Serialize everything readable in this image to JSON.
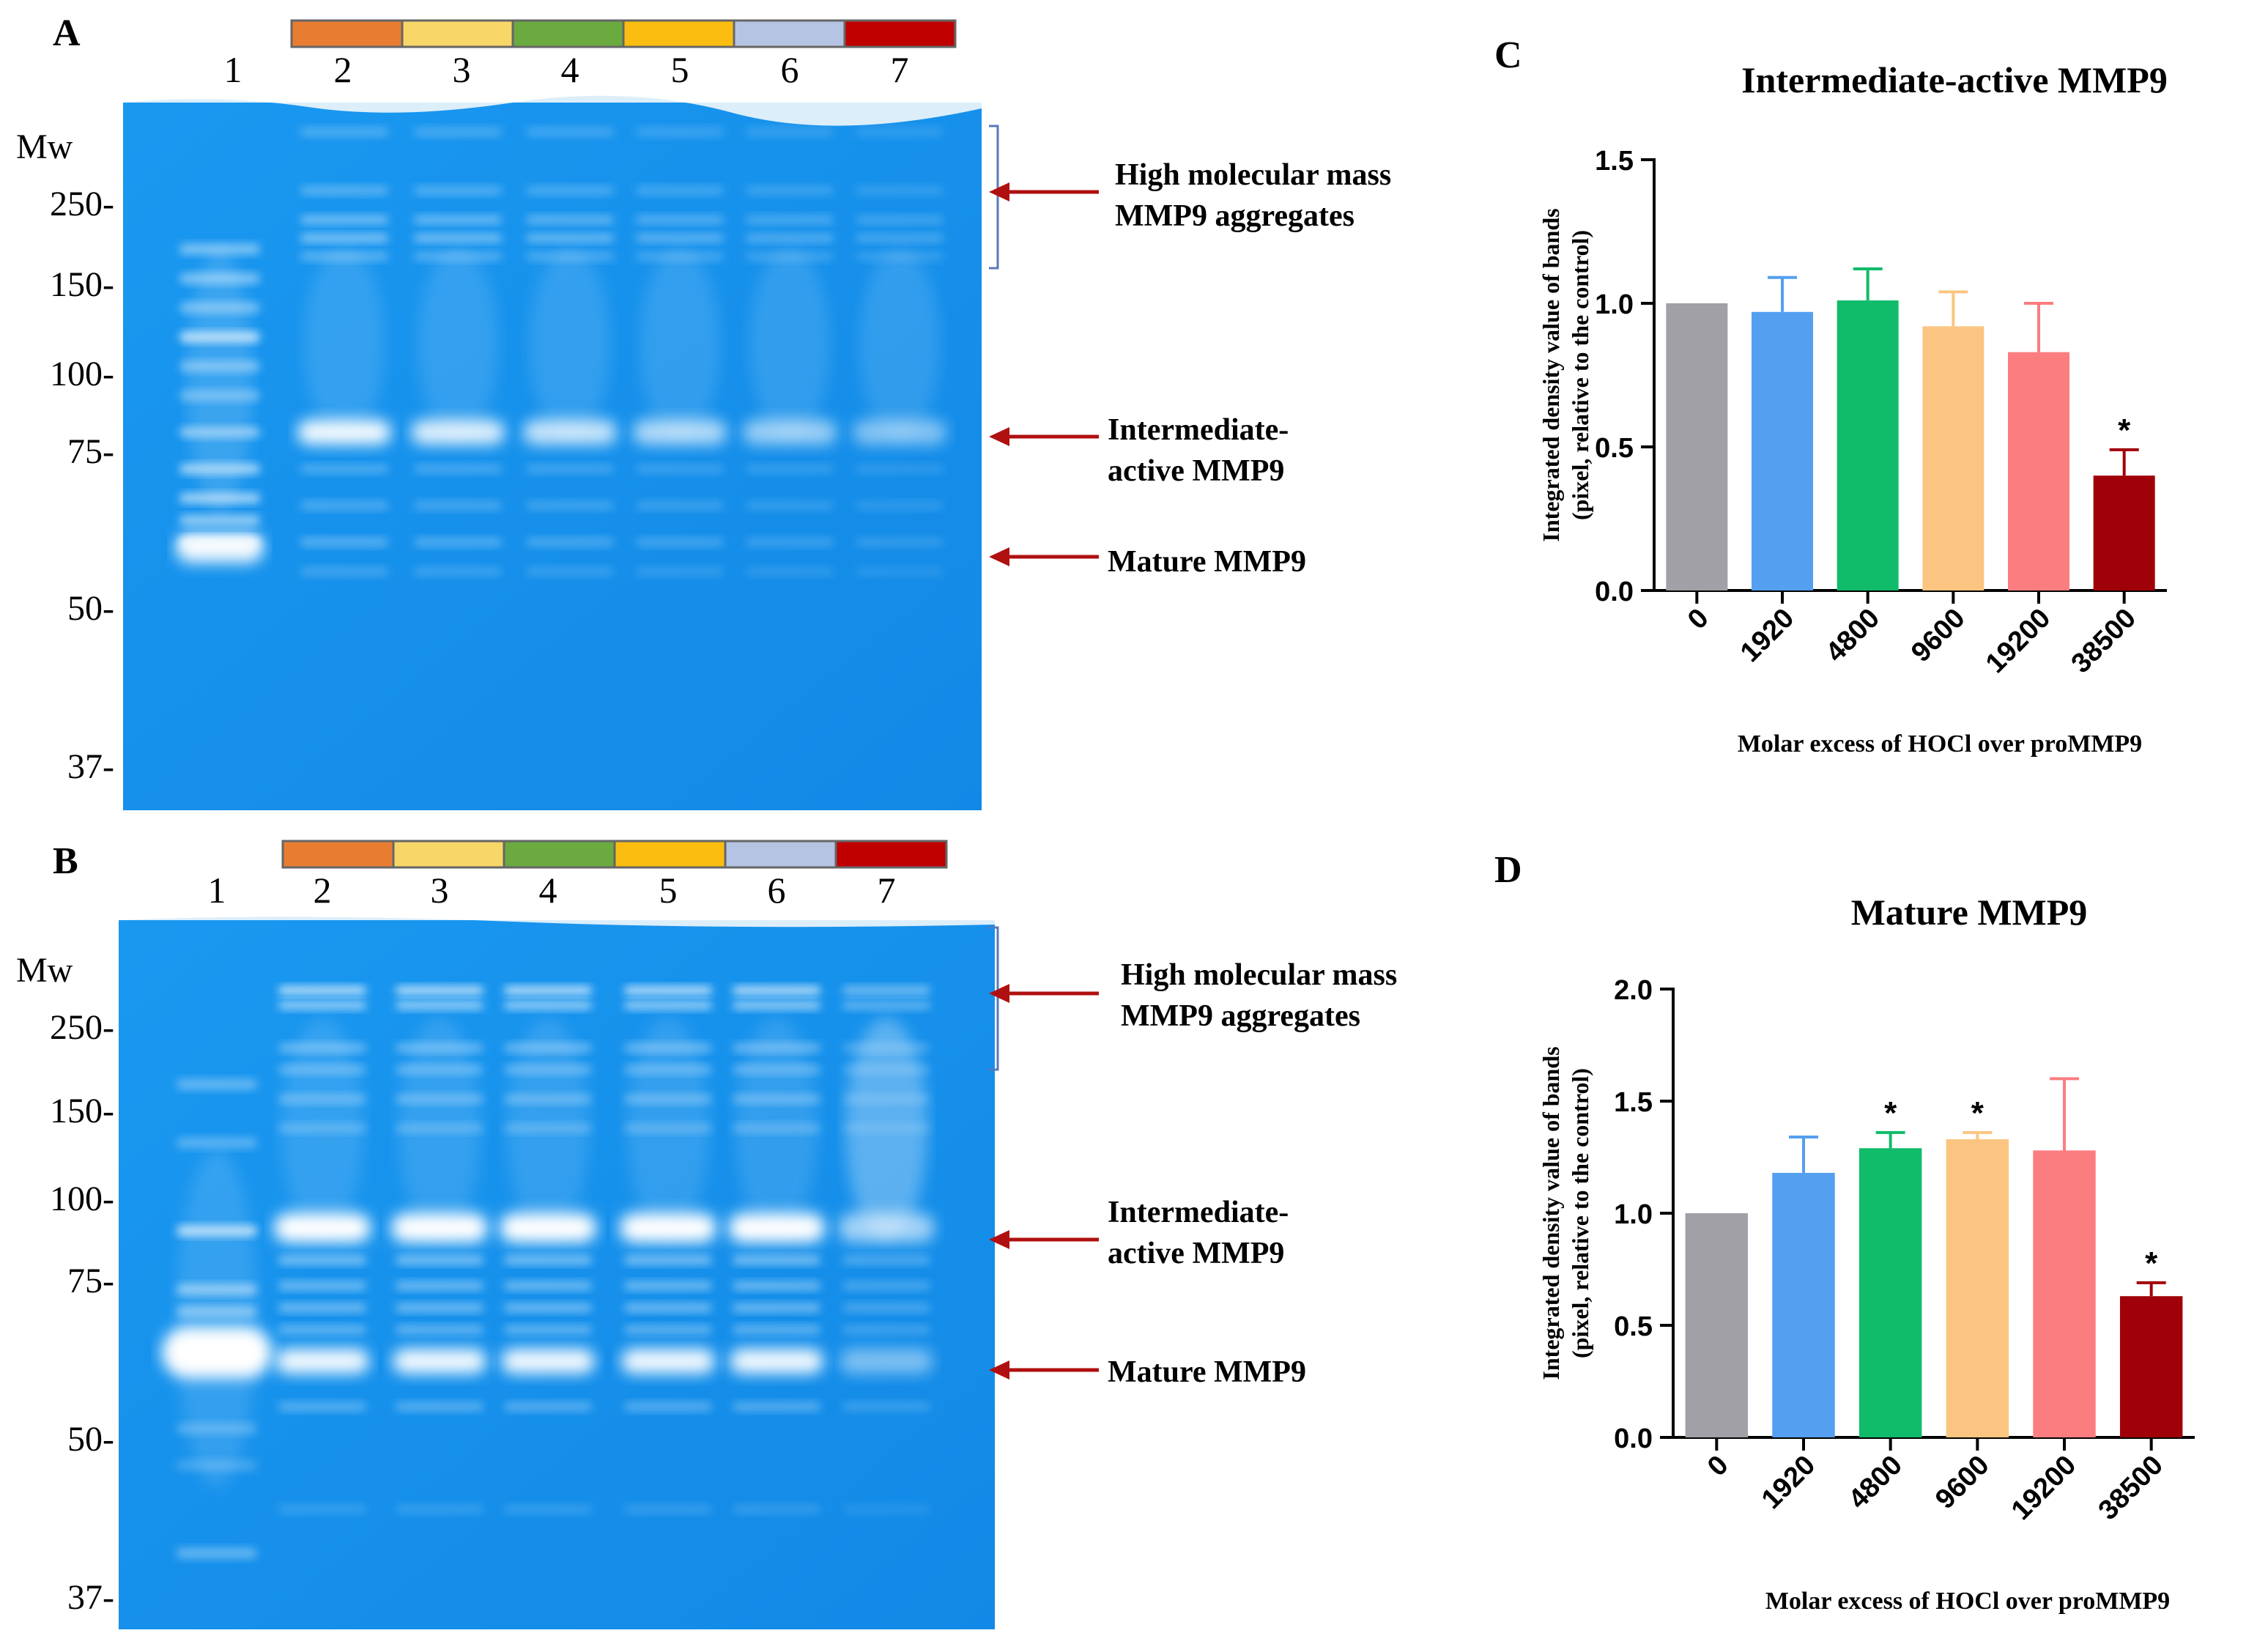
{
  "panels": {
    "A": {
      "label": "A",
      "mw_title": "Mw",
      "lanes": [
        "1",
        "2",
        "3",
        "4",
        "5",
        "6",
        "7"
      ],
      "lane_colors": [
        "#e87d32",
        "#f8d668",
        "#6aaa3e",
        "#fbbd0f",
        "#b5c4e2",
        "#c00000"
      ],
      "mw_markers": [
        "250-",
        "150-",
        "100-",
        "75-",
        "50-",
        "37-"
      ],
      "annotations": [
        "High molecular mass",
        "MMP9 aggregates",
        "Intermediate-",
        "active MMP9",
        "Mature MMP9"
      ]
    },
    "B": {
      "label": "B",
      "mw_title": "Mw",
      "lanes": [
        "1",
        "2",
        "3",
        "4",
        "5",
        "6",
        "7"
      ],
      "lane_colors": [
        "#e87d32",
        "#f8d668",
        "#6aaa3e",
        "#fbbd0f",
        "#b5c4e2",
        "#c00000"
      ],
      "mw_markers": [
        "250-",
        "150-",
        "100-",
        "75-",
        "50-",
        "37-"
      ],
      "annotations": [
        "High molecular mass",
        "MMP9 aggregates",
        "Intermediate-",
        "active MMP9",
        "Mature MMP9"
      ]
    }
  },
  "chart_data": [
    {
      "panel": "C",
      "type": "bar",
      "title": "Intermediate-active MMP9",
      "xlabel": "Molar excess of HOCl over proMMP9",
      "ylabel_line1": "Integrated density value of bands",
      "ylabel_line2": "(pixel, relative to the control)",
      "categories": [
        "0",
        "1920",
        "4800",
        "9600",
        "19200",
        "38500"
      ],
      "values": [
        1.0,
        0.97,
        1.01,
        0.92,
        0.83,
        0.4
      ],
      "errors": [
        0.0,
        0.12,
        0.11,
        0.12,
        0.17,
        0.09
      ],
      "significance": [
        "",
        "",
        "",
        "",
        "",
        "*"
      ],
      "colors": [
        "#a0a0a6",
        "#559ff0",
        "#10bb6a",
        "#fbc581",
        "#fb7d80",
        "#a00008"
      ],
      "ylim": [
        0,
        1.5
      ],
      "yticks": [
        "0.0",
        "0.5",
        "1.0",
        "1.5"
      ]
    },
    {
      "panel": "D",
      "type": "bar",
      "title": "Mature MMP9",
      "xlabel": "Molar excess of HOCl over proMMP9",
      "ylabel_line1": "Integrated density value of bands",
      "ylabel_line2": "(pixel, relative to the control)",
      "categories": [
        "0",
        "1920",
        "4800",
        "9600",
        "19200",
        "38500"
      ],
      "values": [
        1.0,
        1.18,
        1.29,
        1.33,
        1.28,
        0.63
      ],
      "errors": [
        0.0,
        0.16,
        0.07,
        0.03,
        0.32,
        0.06
      ],
      "significance": [
        "",
        "",
        "*",
        "*",
        "",
        "*"
      ],
      "colors": [
        "#a0a0a6",
        "#559ff0",
        "#10bb6a",
        "#fbc581",
        "#fb7d80",
        "#a00008"
      ],
      "ylim": [
        0,
        2.0
      ],
      "yticks": [
        "0.0",
        "0.5",
        "1.0",
        "1.5",
        "2.0"
      ]
    }
  ]
}
